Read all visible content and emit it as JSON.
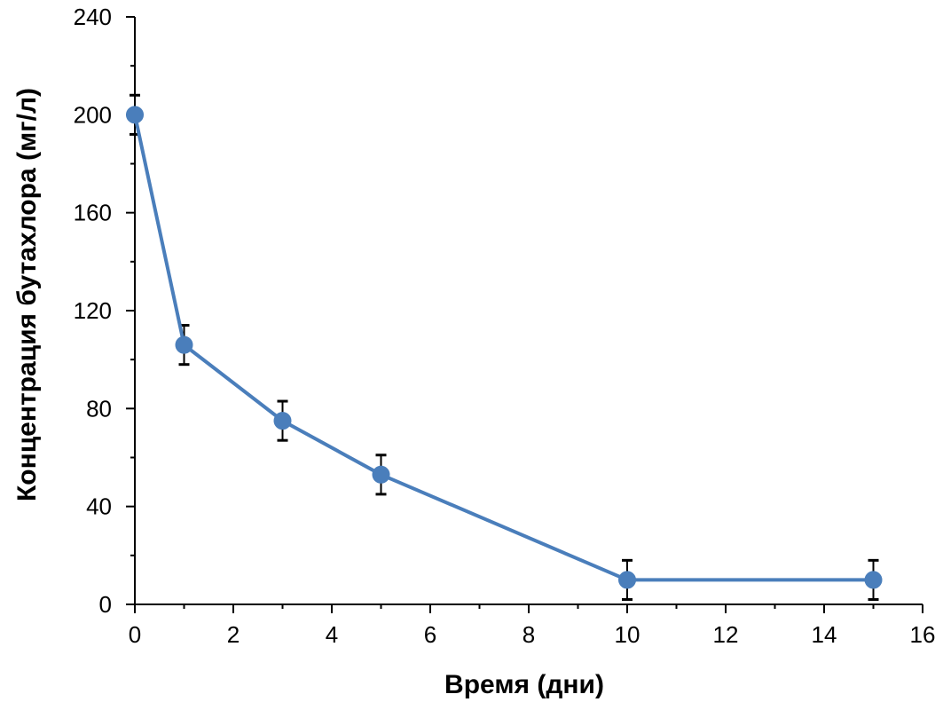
{
  "chart_data": {
    "type": "line",
    "title": "",
    "xlabel": "Время (дни)",
    "ylabel": "Концентрация бутахлора (мг/л)",
    "xlim": [
      0,
      16
    ],
    "ylim": [
      0,
      240
    ],
    "xticks": [
      0,
      2,
      4,
      6,
      8,
      10,
      12,
      14,
      16
    ],
    "yticks": [
      0,
      40,
      80,
      120,
      160,
      200,
      240
    ],
    "x_minor_step": 1,
    "y_minor_step": 20,
    "grid": false,
    "legend": "none",
    "series": [
      {
        "name": "Бутахлор",
        "color": "#4a7ebb",
        "marker": "circle",
        "x": [
          0,
          1,
          3,
          5,
          10,
          15
        ],
        "values": [
          200,
          106,
          75,
          53,
          10,
          10
        ],
        "error": [
          8,
          8,
          8,
          8,
          8,
          8
        ]
      }
    ]
  }
}
